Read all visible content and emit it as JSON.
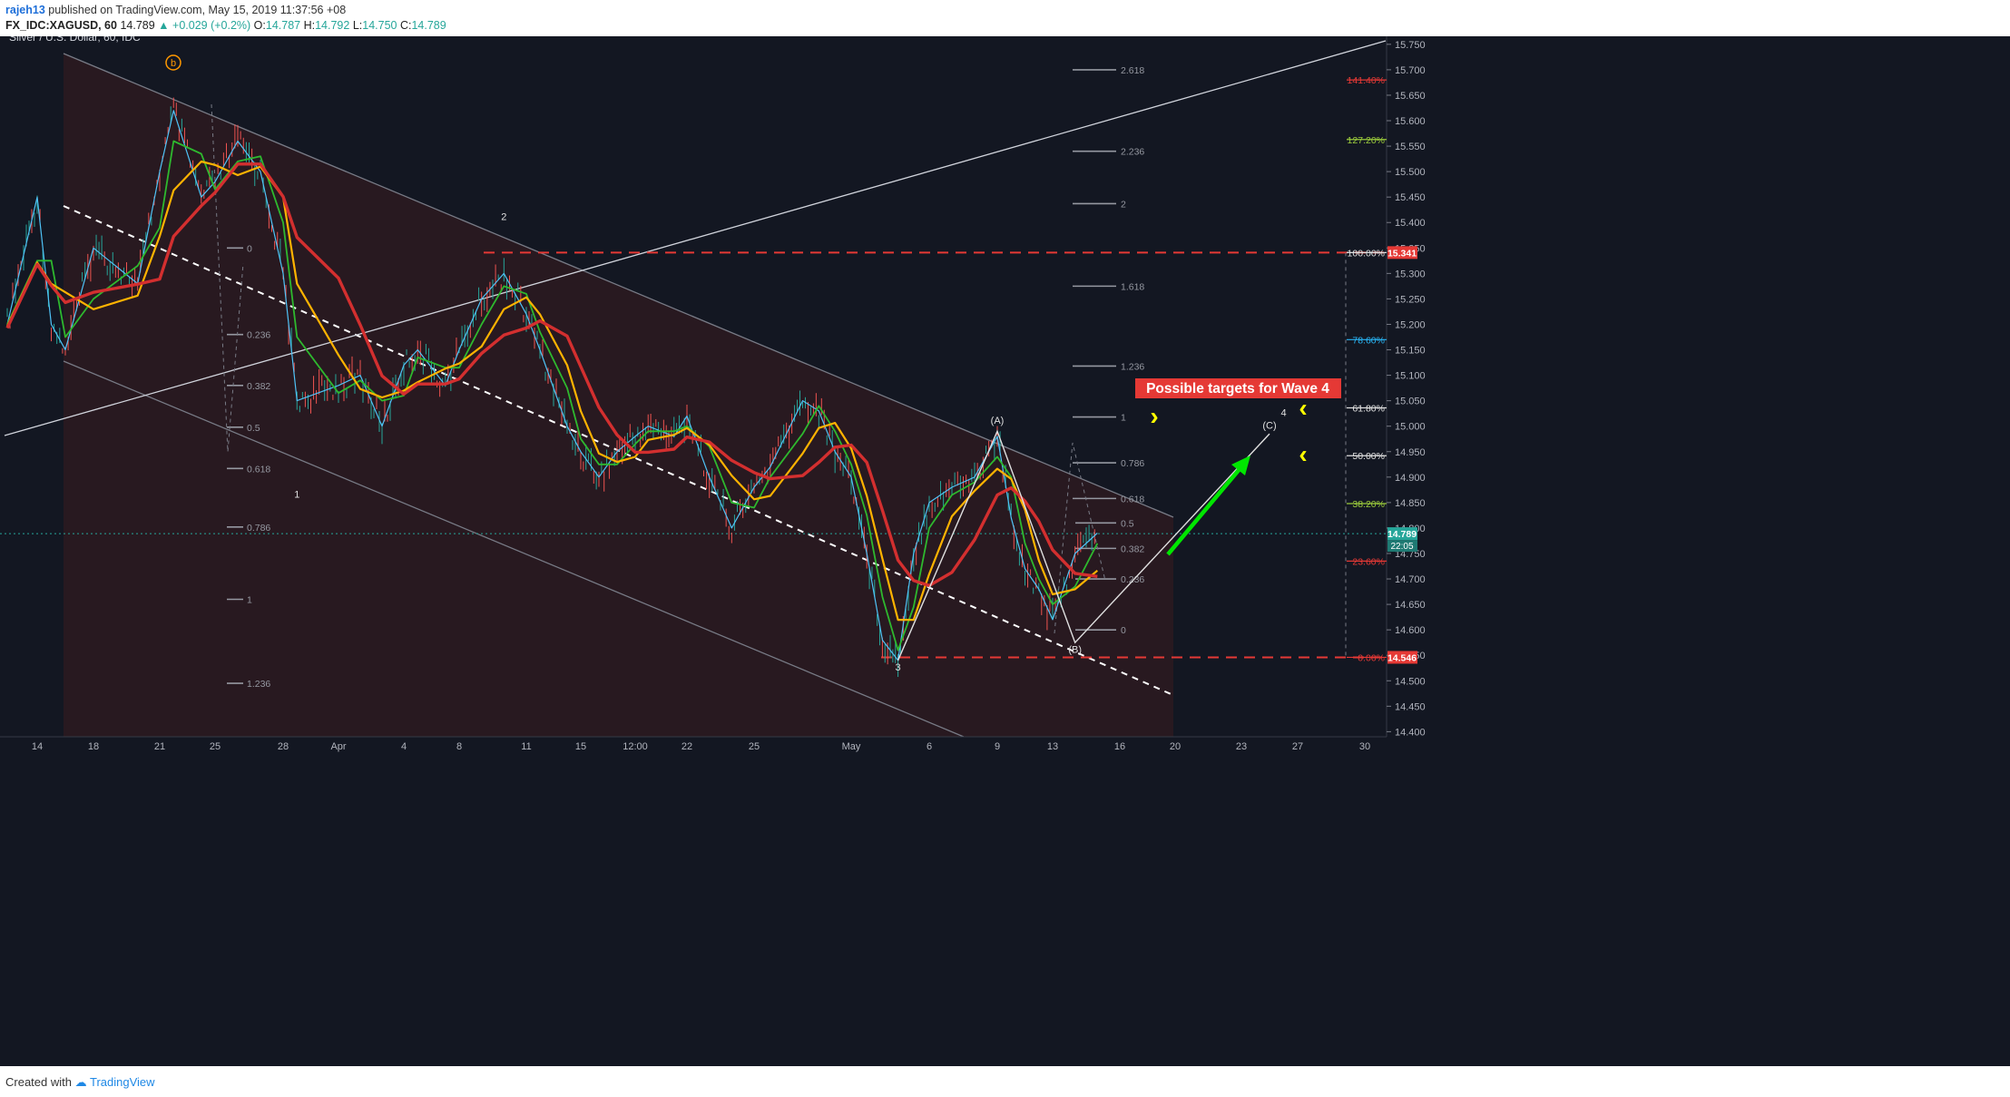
{
  "header": {
    "user": "rajeh13",
    "published_text": "published on TradingView.com, May 15, 2019 11:37:56 +08",
    "symbol": "FX_IDC:XAGUSD, 60",
    "last": "14.789",
    "change_arrow": "▲",
    "change": "+0.029 (+0.2%)",
    "open_label": "O:",
    "open": "14.787",
    "high_label": "H:",
    "high": "14.792",
    "low_label": "L:",
    "low": "14.750",
    "close_label": "C:",
    "close": "14.789"
  },
  "footer": {
    "created_with": "Created with",
    "brand": "TradingView"
  },
  "colors": {
    "background": "#131722",
    "channel_fill": "#2b1a20",
    "red_dashed": "#e53935",
    "ema_red": "#d32f2f",
    "ema_orange": "#ffb300",
    "ema_green": "#2eb82e",
    "ema_cyan": "#4fc3f7",
    "annotation_green": "#00e600",
    "annotation_yellow": "#ffff00",
    "price_tag": "#26a69a",
    "level_red_tag": "#e53935"
  },
  "chart_data": {
    "type": "line",
    "title": "Silver / U.S. Dollar, 60, IDC",
    "timeframe": "60",
    "ylim": [
      14.39,
      15.78
    ],
    "y_ticks": [
      "15.750",
      "15.700",
      "15.650",
      "15.600",
      "15.550",
      "15.500",
      "15.450",
      "15.400",
      "15.350",
      "15.300",
      "15.250",
      "15.200",
      "15.150",
      "15.100",
      "15.050",
      "15.000",
      "14.950",
      "14.900",
      "14.850",
      "14.800",
      "14.750",
      "14.700",
      "14.650",
      "14.600",
      "14.550",
      "14.500",
      "14.450",
      "14.400"
    ],
    "x_ticks": [
      "14",
      "18",
      "21",
      "25",
      "28",
      "Apr",
      "4",
      "8",
      "11",
      "15",
      "12:00",
      "22",
      "25",
      "May",
      "6",
      "9",
      "13",
      "16",
      "20",
      "23",
      "27",
      "30"
    ],
    "price_line": {
      "value": 14.789,
      "label": "14.789",
      "countdown": "22:05"
    },
    "price_path": [
      {
        "t": "Mar 13",
        "v": 15.2
      },
      {
        "t": "Mar 14",
        "v": 15.45
      },
      {
        "t": "Mar 15",
        "v": 15.2
      },
      {
        "t": "Mar 16",
        "v": 15.15
      },
      {
        "t": "Mar 18",
        "v": 15.35
      },
      {
        "t": "Mar 20",
        "v": 15.28
      },
      {
        "t": "Mar 21",
        "v": 15.5
      },
      {
        "t": "Mar 22",
        "v": 15.62
      },
      {
        "t": "Mar 24",
        "v": 15.45
      },
      {
        "t": "Mar 25",
        "v": 15.48
      },
      {
        "t": "Mar 26",
        "v": 15.56
      },
      {
        "t": "Mar 27",
        "v": 15.5
      },
      {
        "t": "Mar 28",
        "v": 15.3
      },
      {
        "t": "Mar 29",
        "v": 15.05
      },
      {
        "t": "Apr 1",
        "v": 15.08
      },
      {
        "t": "Apr 2",
        "v": 15.1
      },
      {
        "t": "Apr 3",
        "v": 15.0
      },
      {
        "t": "Apr 4",
        "v": 15.12
      },
      {
        "t": "Apr 5",
        "v": 15.15
      },
      {
        "t": "Apr 7",
        "v": 15.08
      },
      {
        "t": "Apr 8",
        "v": 15.15
      },
      {
        "t": "Apr 9",
        "v": 15.25
      },
      {
        "t": "Apr 10",
        "v": 15.3
      },
      {
        "t": "Apr 11",
        "v": 15.22
      },
      {
        "t": "Apr 12",
        "v": 15.15
      },
      {
        "t": "Apr 14",
        "v": 15.0
      },
      {
        "t": "Apr 15",
        "v": 14.95
      },
      {
        "t": "Apr 16",
        "v": 14.9
      },
      {
        "t": "Apr 17",
        "v": 14.95
      },
      {
        "t": "Apr 18",
        "v": 14.98
      },
      {
        "t": "Apr 19",
        "v": 15.0
      },
      {
        "t": "Apr 21",
        "v": 14.98
      },
      {
        "t": "Apr 22",
        "v": 15.02
      },
      {
        "t": "Apr 23",
        "v": 14.9
      },
      {
        "t": "Apr 24",
        "v": 14.8
      },
      {
        "t": "Apr 25",
        "v": 14.88
      },
      {
        "t": "Apr 26",
        "v": 14.92
      },
      {
        "t": "Apr 28",
        "v": 15.05
      },
      {
        "t": "Apr 29",
        "v": 15.03
      },
      {
        "t": "Apr 30",
        "v": 14.95
      },
      {
        "t": "May 1",
        "v": 14.9
      },
      {
        "t": "May 2",
        "v": 14.75
      },
      {
        "t": "May 3",
        "v": 14.58
      },
      {
        "t": "May 4",
        "v": 14.54
      },
      {
        "t": "May 5",
        "v": 14.75
      },
      {
        "t": "May 6",
        "v": 14.85
      },
      {
        "t": "May 7",
        "v": 14.88
      },
      {
        "t": "May 8",
        "v": 14.9
      },
      {
        "t": "May 9",
        "v": 14.98
      },
      {
        "t": "May 10",
        "v": 14.82
      },
      {
        "t": "May 11",
        "v": 14.72
      },
      {
        "t": "May 12",
        "v": 14.68
      },
      {
        "t": "May 13",
        "v": 14.62
      },
      {
        "t": "May 14",
        "v": 14.75
      },
      {
        "t": "May 15",
        "v": 14.79
      }
    ],
    "moving_averages": [
      {
        "name": "fast",
        "color": "#4fc3f7"
      },
      {
        "name": "medium",
        "color": "#2eb82e"
      },
      {
        "name": "slow",
        "color": "#ffb300"
      },
      {
        "name": "long",
        "color": "#d32f2f"
      }
    ],
    "fib_extension_right": [
      {
        "label": "141.40%",
        "value": 15.68,
        "color": "#e53935"
      },
      {
        "label": "127.20%",
        "value": 15.563,
        "color": "#9ccc3c"
      },
      {
        "label": "100.00%",
        "value": 15.341,
        "color": "#e0e0e0"
      },
      {
        "label": "78.60%",
        "value": 15.17,
        "color": "#29b6f6"
      },
      {
        "label": "61.80%",
        "value": 15.036,
        "color": "#e0e0e0"
      },
      {
        "label": "50.00%",
        "value": 14.942,
        "color": "#e0e0e0"
      },
      {
        "label": "38.20%",
        "value": 14.848,
        "color": "#9ccc3c"
      },
      {
        "label": "23.60%",
        "value": 14.735,
        "color": "#e53935"
      },
      {
        "label": "0.00%",
        "value": 14.546,
        "color": "#e53935"
      }
    ],
    "fib_left": [
      {
        "label": "0",
        "value": 15.35
      },
      {
        "label": "0.236",
        "value": 15.18
      },
      {
        "label": "0.382",
        "value": 15.08
      },
      {
        "label": "0.5",
        "value": 14.998
      },
      {
        "label": "0.618",
        "value": 14.917
      },
      {
        "label": "0.786",
        "value": 14.802
      },
      {
        "label": "1",
        "value": 14.66
      },
      {
        "label": "1.236",
        "value": 14.495
      }
    ],
    "fib_mid": [
      {
        "label": "2.618",
        "value": 15.7
      },
      {
        "label": "2.236",
        "value": 15.54
      },
      {
        "label": "2",
        "value": 15.437
      },
      {
        "label": "1.618",
        "value": 15.275
      },
      {
        "label": "1.236",
        "value": 15.118
      },
      {
        "label": "1",
        "value": 15.018
      },
      {
        "label": "0.786",
        "value": 14.928
      },
      {
        "label": "0.618",
        "value": 14.858
      }
    ],
    "fib_small": [
      {
        "label": "0.5",
        "value": 14.81
      },
      {
        "label": "0.382",
        "value": 14.76
      },
      {
        "label": "0.236",
        "value": 14.7
      },
      {
        "label": "0",
        "value": 14.6
      }
    ],
    "levels": [
      {
        "label": "15.341",
        "value": 15.341
      },
      {
        "label": "14.546",
        "value": 14.546
      }
    ],
    "wave_labels": [
      {
        "label": "b",
        "t": "Mar 23",
        "v": 15.72,
        "circled": true
      },
      {
        "label": "2",
        "t": "Apr 10",
        "v": 15.405
      },
      {
        "label": "1",
        "t": "Mar 29",
        "v": 14.86
      },
      {
        "label": "3",
        "t": "May 4",
        "v": 14.52
      },
      {
        "label": "(A)",
        "t": "May 9",
        "v": 15.005
      },
      {
        "label": "(B)",
        "t": "May 14",
        "v": 14.555
      },
      {
        "label": "4",
        "t": "May 26",
        "v": 15.02
      },
      {
        "label": "(C)",
        "t": "May 25",
        "v": 14.995
      }
    ],
    "abc_path": [
      {
        "t": "May 4",
        "v": 14.54
      },
      {
        "t": "May 9",
        "v": 14.99
      },
      {
        "t": "May 14",
        "v": 14.575
      },
      {
        "t": "May 25",
        "v": 14.985
      }
    ],
    "annotation": {
      "text": "Possible targets for Wave 4"
    }
  }
}
